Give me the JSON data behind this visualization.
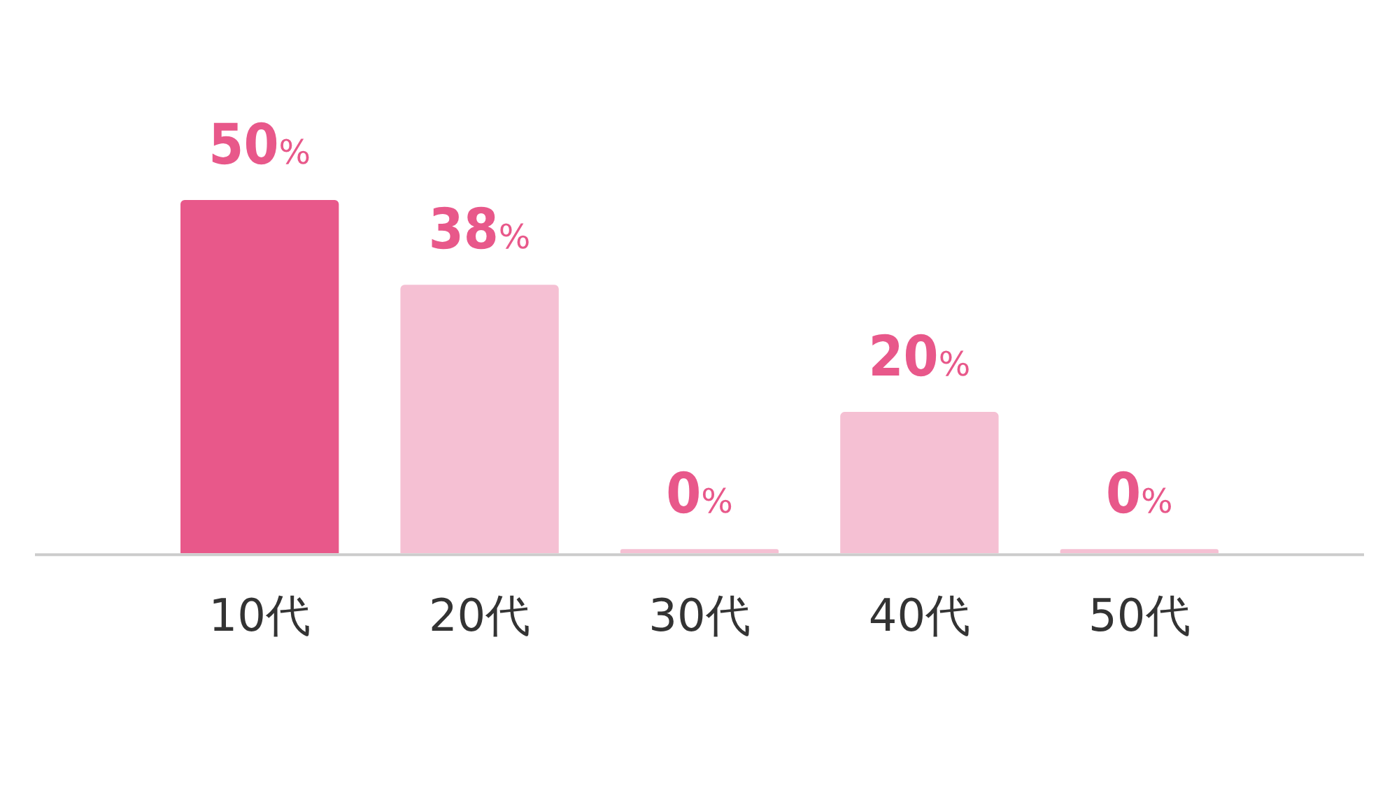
{
  "chart_data": {
    "type": "bar",
    "categories": [
      "10代",
      "20代",
      "30代",
      "40代",
      "50代"
    ],
    "values": [
      50,
      38,
      0,
      20,
      0
    ],
    "colors": [
      "#e8588a",
      "#f5c0d3",
      "#f5c0d3",
      "#f5c0d3",
      "#f5c0d3"
    ],
    "value_labels": [
      "50%",
      "38%",
      "0%",
      "20%",
      "0%"
    ],
    "grid": false,
    "legend": false
  }
}
